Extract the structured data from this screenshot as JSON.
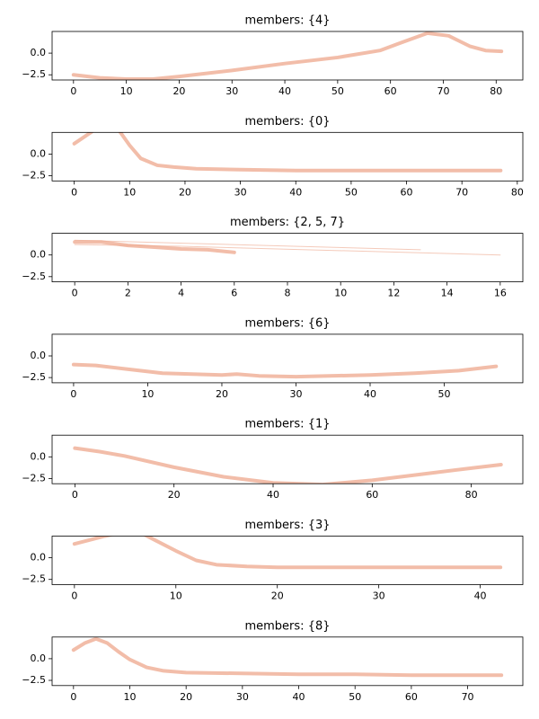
{
  "chart_data": [
    {
      "type": "line",
      "title": "members: {4}",
      "xlim": [
        -4.05,
        85.05
      ],
      "ylim": [
        -3.1,
        2.5
      ],
      "xticks": [
        0,
        10,
        20,
        30,
        40,
        50,
        60,
        70,
        80
      ],
      "yticks": [
        {
          "value": -2.5,
          "label": "−2.5"
        },
        {
          "value": 0,
          "label": "0.0"
        }
      ],
      "series": [
        {
          "color": "#eda78c",
          "linewidth": 4,
          "x": [
            0,
            5,
            10,
            15,
            20,
            30,
            40,
            50,
            58,
            62,
            67,
            71,
            75,
            78,
            81
          ],
          "values": [
            -2.5,
            -2.85,
            -3.0,
            -3.0,
            -2.7,
            -2.0,
            -1.2,
            -0.5,
            0.3,
            1.2,
            2.3,
            2.0,
            0.8,
            0.3,
            0.2
          ]
        }
      ]
    },
    {
      "type": "line",
      "title": "members: {0}",
      "xlim": [
        -4,
        81
      ],
      "ylim": [
        -3.1,
        2.5
      ],
      "xticks": [
        0,
        10,
        20,
        30,
        40,
        50,
        60,
        70,
        80
      ],
      "yticks": [
        {
          "value": -2.5,
          "label": "−2.5"
        },
        {
          "value": 0,
          "label": "0.0"
        }
      ],
      "series": [
        {
          "color": "#eda78c",
          "linewidth": 4,
          "x": [
            0,
            3,
            5,
            8,
            10,
            12,
            15,
            18,
            22,
            30,
            40,
            50,
            60,
            77
          ],
          "values": [
            1.2,
            2.5,
            3.5,
            2.8,
            1.0,
            -0.5,
            -1.3,
            -1.5,
            -1.7,
            -1.8,
            -1.9,
            -1.9,
            -1.9,
            -1.9
          ]
        }
      ]
    },
    {
      "type": "line",
      "title": "members: {2, 5, 7}",
      "xlim": [
        -0.85,
        16.85
      ],
      "ylim": [
        -3.1,
        2.5
      ],
      "xticks": [
        0,
        2,
        4,
        6,
        8,
        10,
        12,
        14,
        16
      ],
      "yticks": [
        {
          "value": -2.5,
          "label": "−2.5"
        },
        {
          "value": 0,
          "label": "0.0"
        }
      ],
      "series": [
        {
          "color": "#eda78c",
          "linewidth": 4,
          "x": [
            0,
            1,
            2,
            3,
            4,
            5,
            6
          ],
          "values": [
            1.5,
            1.5,
            1.1,
            0.9,
            0.7,
            0.6,
            0.3
          ]
        },
        {
          "color": "#eda78c",
          "linewidth": 1,
          "x": [
            0,
            13
          ],
          "values": [
            1.7,
            0.6
          ]
        },
        {
          "color": "#eda78c",
          "linewidth": 1,
          "x": [
            0,
            4,
            16
          ],
          "values": [
            1.2,
            1.0,
            0.0
          ]
        }
      ]
    },
    {
      "type": "line",
      "title": "members: {6}",
      "xlim": [
        -2.9,
        60.6
      ],
      "ylim": [
        -3.1,
        2.5
      ],
      "xticks": [
        0,
        10,
        20,
        30,
        40,
        50
      ],
      "yticks": [
        {
          "value": -2.5,
          "label": "−2.5"
        },
        {
          "value": 0,
          "label": "0.0"
        }
      ],
      "series": [
        {
          "color": "#eda78c",
          "linewidth": 4,
          "x": [
            0,
            3,
            7,
            12,
            20,
            22,
            25,
            30,
            40,
            46,
            52,
            57
          ],
          "values": [
            -1.0,
            -1.1,
            -1.5,
            -2.0,
            -2.2,
            -2.1,
            -2.3,
            -2.4,
            -2.2,
            -2.0,
            -1.7,
            -1.2
          ]
        }
      ]
    },
    {
      "type": "line",
      "title": "members: {1}",
      "xlim": [
        -4.6,
        90.4
      ],
      "ylim": [
        -3.1,
        2.5
      ],
      "xticks": [
        0,
        20,
        40,
        60,
        80
      ],
      "yticks": [
        {
          "value": -2.5,
          "label": "−2.5"
        },
        {
          "value": 0,
          "label": "0.0"
        }
      ],
      "series": [
        {
          "color": "#eda78c",
          "linewidth": 4,
          "x": [
            0,
            5,
            10,
            20,
            30,
            40,
            50,
            60,
            70,
            80,
            86
          ],
          "values": [
            1.0,
            0.6,
            0.1,
            -1.2,
            -2.3,
            -3.0,
            -3.2,
            -2.7,
            -2.0,
            -1.3,
            -0.9
          ]
        }
      ]
    },
    {
      "type": "line",
      "title": "members: {3}",
      "xlim": [
        -2.2,
        44.2
      ],
      "ylim": [
        -3.1,
        2.5
      ],
      "xticks": [
        0,
        10,
        20,
        30,
        40
      ],
      "yticks": [
        {
          "value": -2.5,
          "label": "−2.5"
        },
        {
          "value": 0,
          "label": "0.0"
        }
      ],
      "series": [
        {
          "color": "#eda78c",
          "linewidth": 4,
          "x": [
            0,
            3,
            6,
            8,
            10,
            12,
            14,
            17,
            20,
            30,
            42
          ],
          "values": [
            1.6,
            2.5,
            3.2,
            2.0,
            0.8,
            -0.3,
            -0.8,
            -1.0,
            -1.1,
            -1.1,
            -1.1
          ]
        }
      ]
    },
    {
      "type": "line",
      "title": "members: {8}",
      "xlim": [
        -3.8,
        79.8
      ],
      "ylim": [
        -3.1,
        2.5
      ],
      "xticks": [
        0,
        10,
        20,
        30,
        40,
        50,
        60,
        70
      ],
      "yticks": [
        {
          "value": -2.5,
          "label": "−2.5"
        },
        {
          "value": 0,
          "label": "0.0"
        }
      ],
      "series": [
        {
          "color": "#eda78c",
          "linewidth": 4,
          "x": [
            0,
            2,
            4,
            6,
            8,
            10,
            13,
            16,
            20,
            30,
            40,
            50,
            60,
            76
          ],
          "values": [
            1.0,
            1.8,
            2.3,
            1.8,
            0.8,
            -0.1,
            -1.0,
            -1.4,
            -1.6,
            -1.7,
            -1.8,
            -1.8,
            -1.9,
            -1.9
          ]
        }
      ]
    }
  ]
}
